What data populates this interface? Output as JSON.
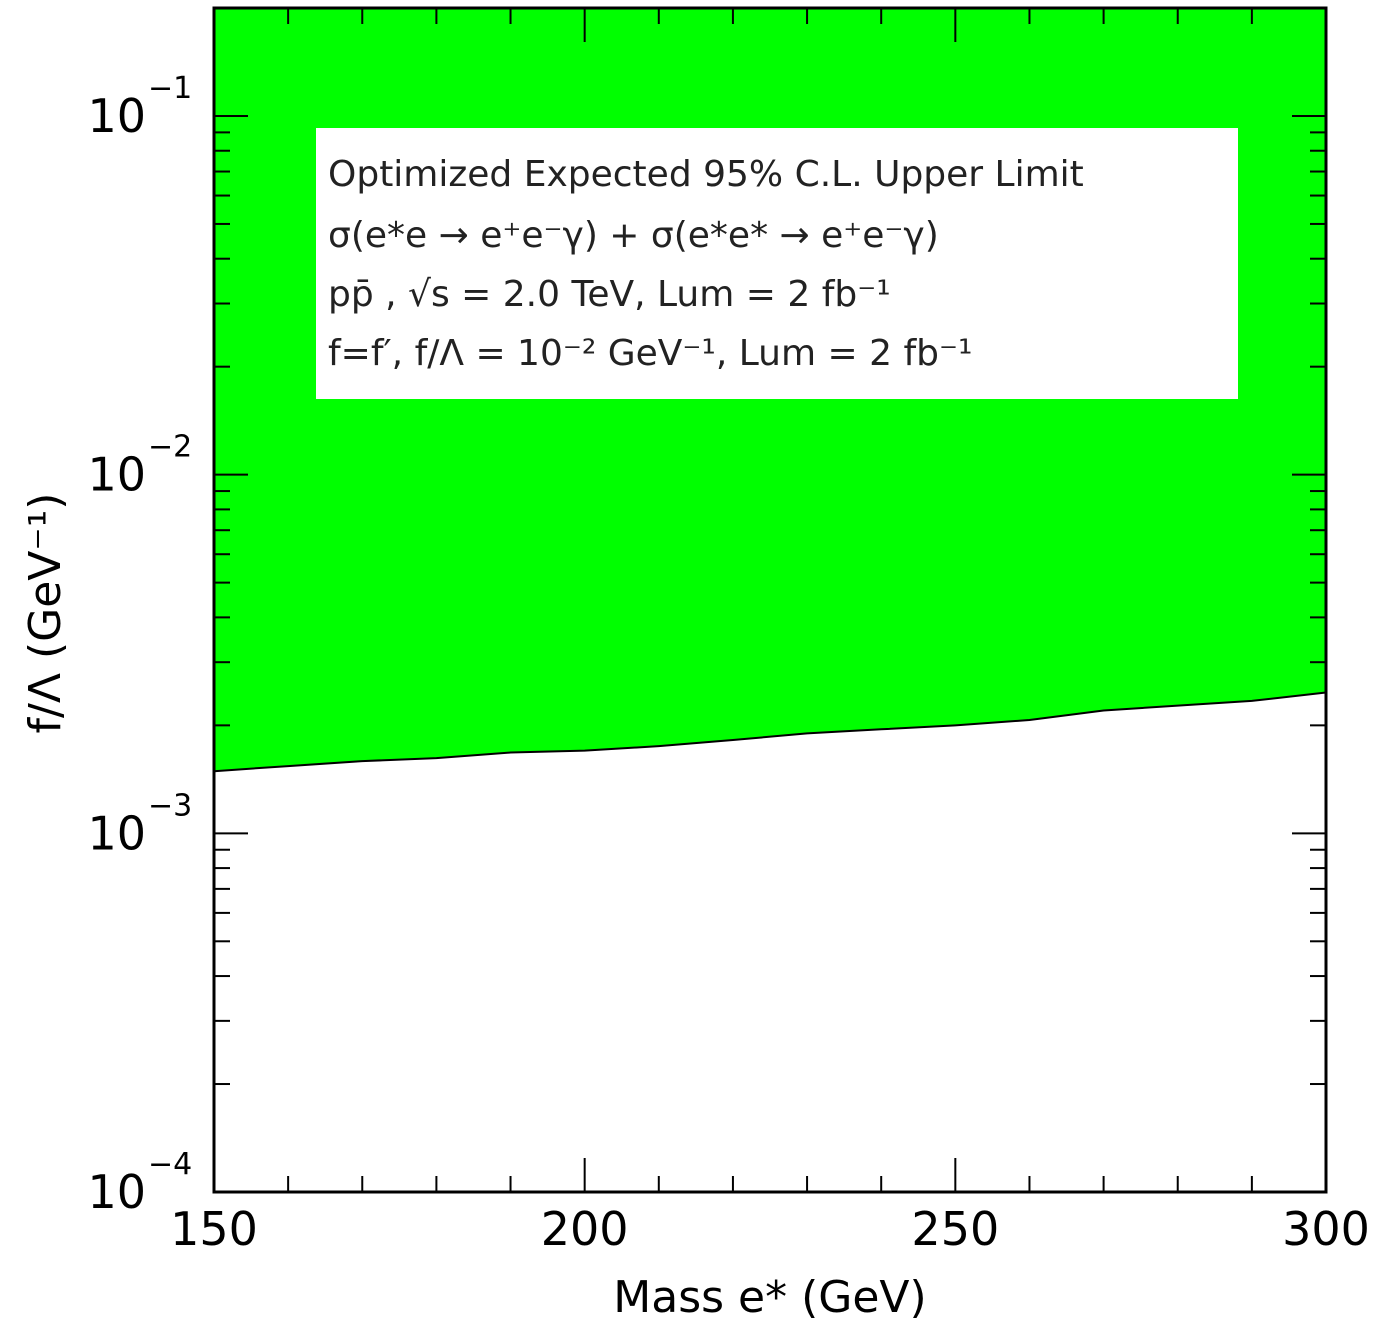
{
  "chart_data": {
    "type": "area",
    "xlabel": "Mass e* (GeV)",
    "ylabel": "f/Λ (GeV⁻¹)",
    "xlim": [
      150,
      300
    ],
    "ylim": [
      0.0001,
      0.2
    ],
    "y_scale": "log",
    "x_ticks": [
      150,
      200,
      250,
      300
    ],
    "y_ticks": [
      {
        "value": 0.1,
        "base": "10",
        "exp": "−1"
      },
      {
        "value": 0.01,
        "base": "10",
        "exp": "−2"
      },
      {
        "value": 0.001,
        "base": "10",
        "exp": "−3"
      },
      {
        "value": 0.0001,
        "base": "10",
        "exp": "−4"
      }
    ],
    "series": [
      {
        "fill": "#00ff00",
        "x": [
          150,
          160,
          170,
          180,
          190,
          200,
          210,
          220,
          230,
          240,
          250,
          260,
          270,
          280,
          290,
          300
        ],
        "y": [
          0.00149,
          0.00154,
          0.00159,
          0.00162,
          0.00168,
          0.0017,
          0.00175,
          0.00182,
          0.0019,
          0.00195,
          0.002,
          0.00207,
          0.0022,
          0.00227,
          0.00234,
          0.00247
        ]
      }
    ],
    "legend": {
      "placement": "top-center",
      "lines": [
        "Optimized Expected 95% C.L. Upper Limit",
        "σ(e*e → e⁺e⁻γ) + σ(e*e* → e⁺e⁻γ)",
        "pp̄ , √s = 2.0 TeV, Lum = 2 fb⁻¹",
        "f=f′, f/Λ = 10⁻² GeV⁻¹, Lum = 2 fb⁻¹"
      ]
    }
  },
  "colors": {
    "excluded_region": "#00ff00",
    "axes": "#000000",
    "legend_bg": "#ffffff"
  }
}
